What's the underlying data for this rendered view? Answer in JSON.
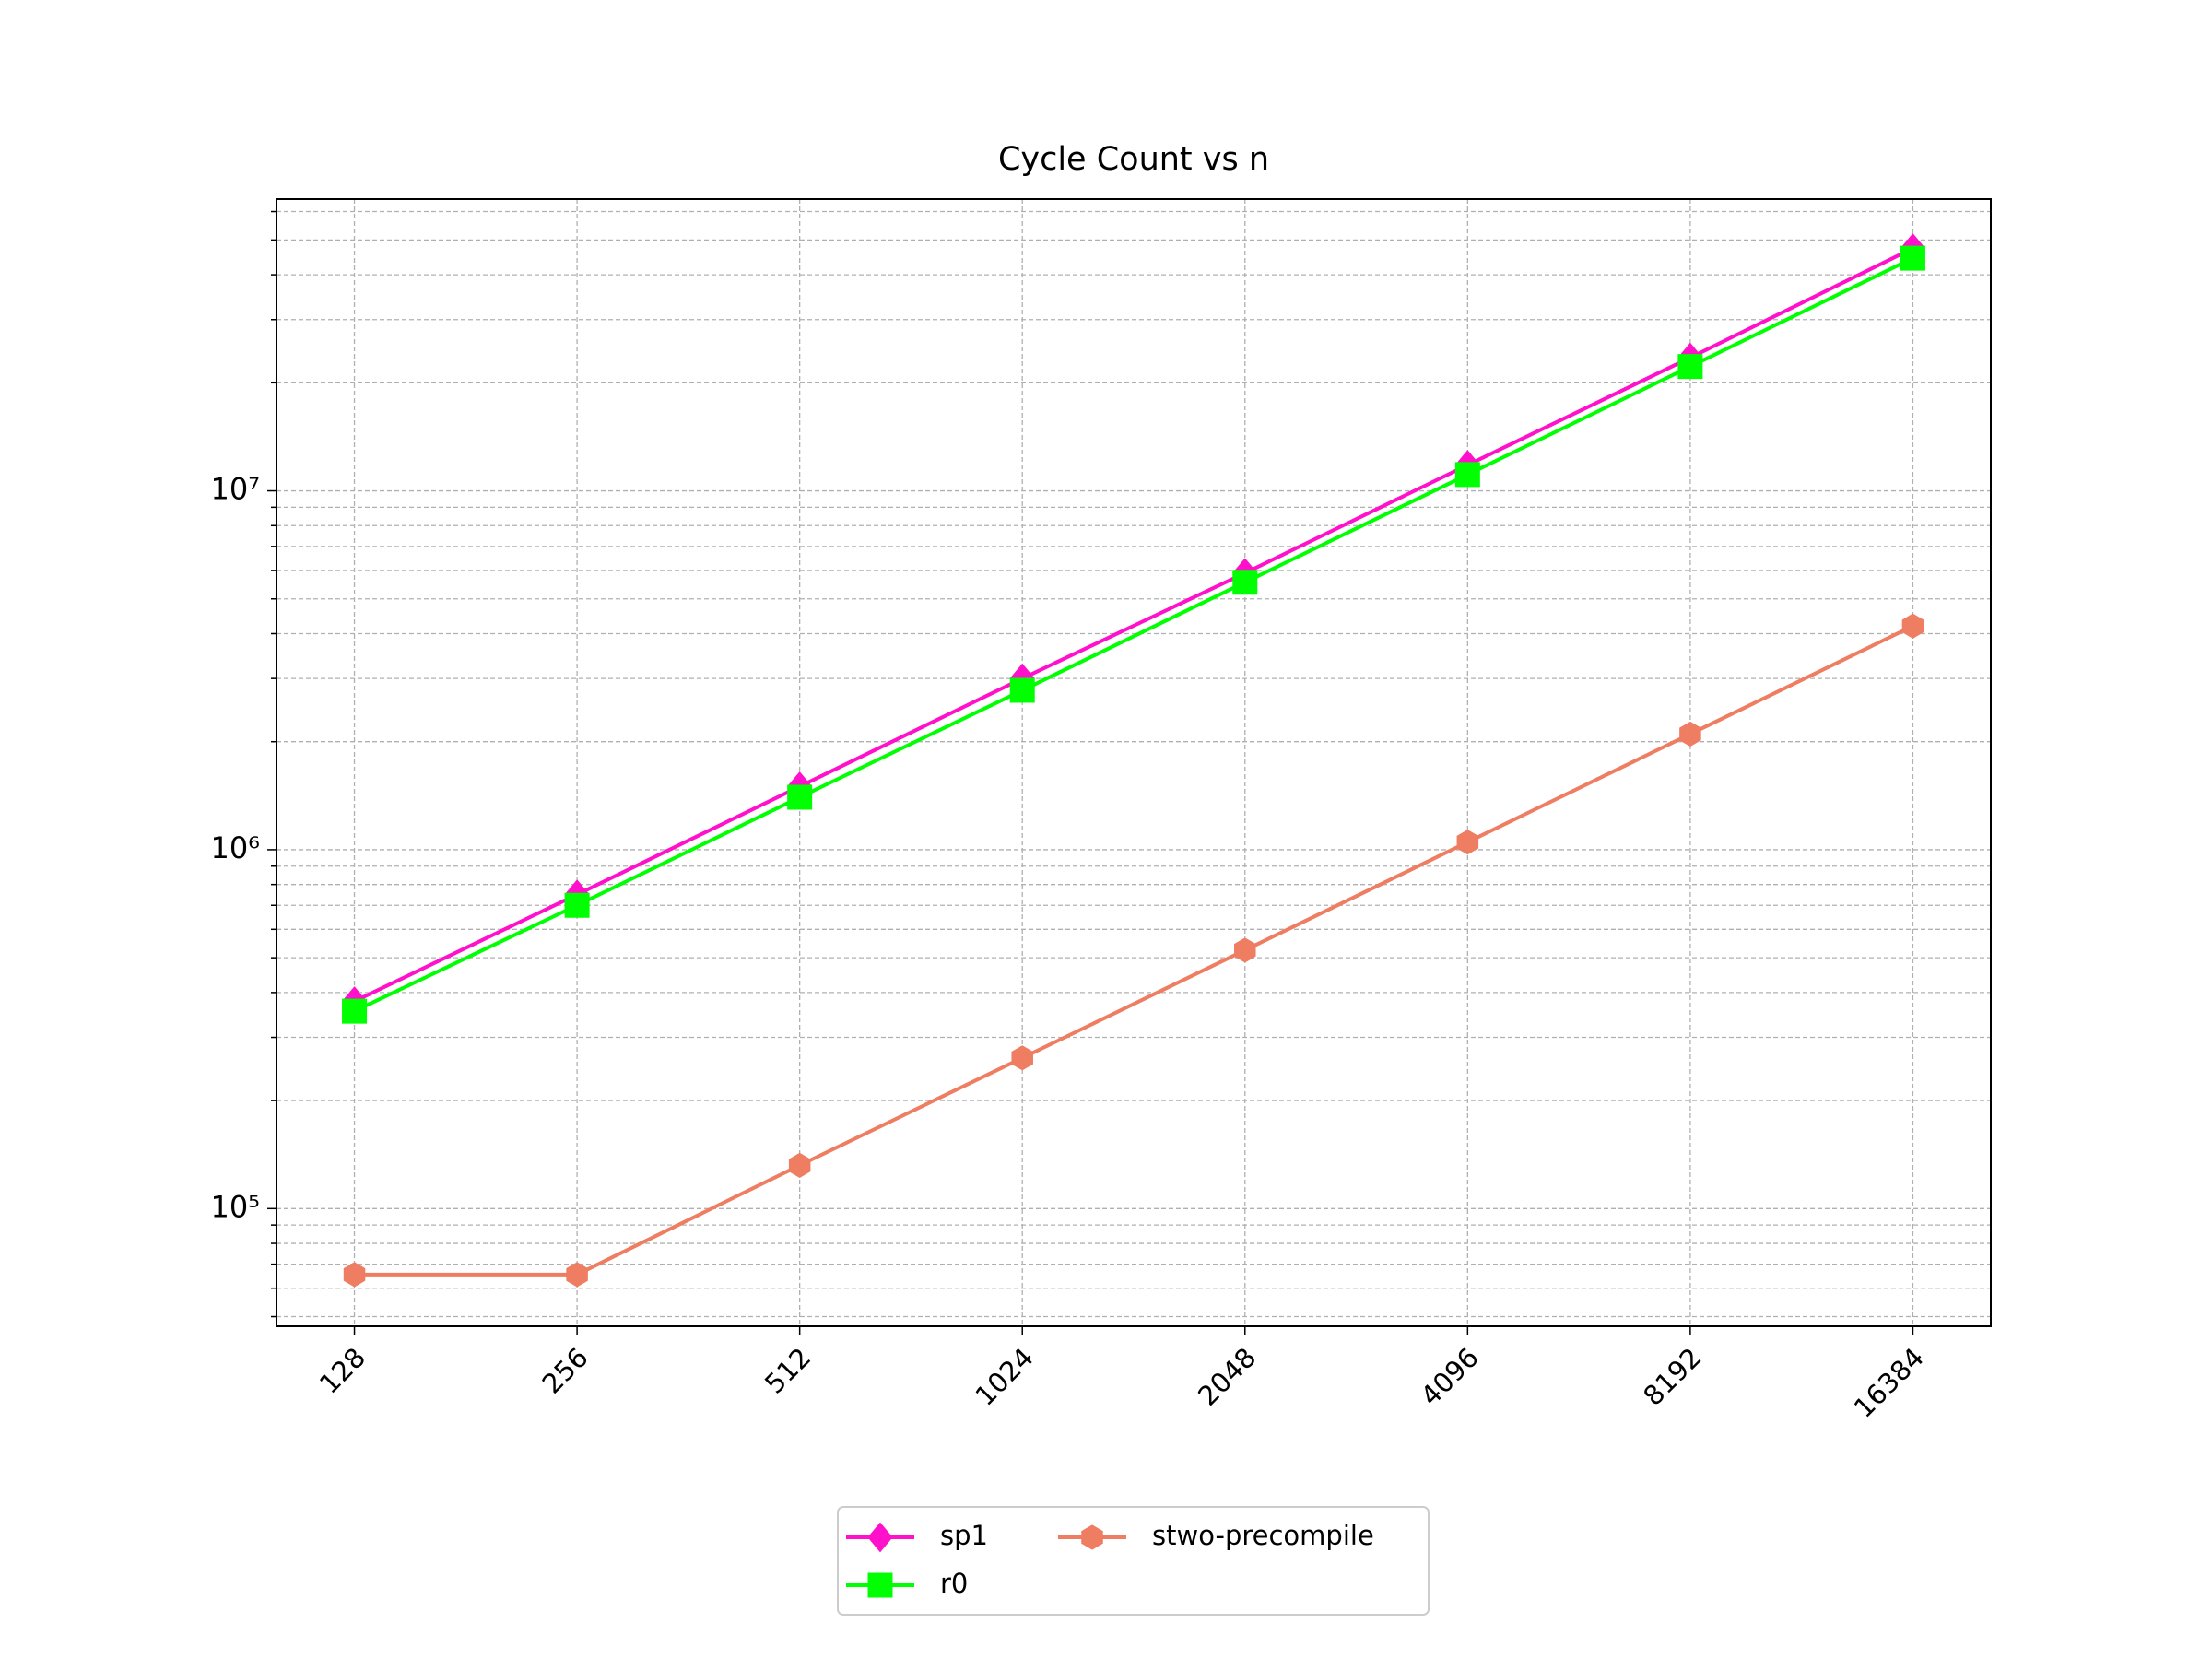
{
  "chart_data": {
    "type": "line",
    "title": "Cycle Count vs n",
    "categories": [
      "128",
      "256",
      "512",
      "1024",
      "2048",
      "4096",
      "8192",
      "16384"
    ],
    "series": [
      {
        "name": "sp1",
        "color": "#ff11cc",
        "marker": "diamond",
        "values": [
          378000,
          750000,
          1500000,
          3000000,
          5900000,
          11800000,
          23500000,
          47400000
        ]
      },
      {
        "name": "r0",
        "color": "#00ff00",
        "marker": "square",
        "values": [
          355000,
          700000,
          1400000,
          2780000,
          5560000,
          11100000,
          22200000,
          44500000
        ]
      },
      {
        "name": "stwo-precompile",
        "color": "#ee7d62",
        "marker": "hexagon",
        "values": [
          65500,
          65500,
          132000,
          263000,
          525000,
          1050000,
          2100000,
          4200000
        ]
      }
    ],
    "ylim": [
      47000,
      65000000
    ],
    "log_y": true,
    "yticks": [
      {
        "value": 100000,
        "label": "10⁵"
      },
      {
        "value": 1000000,
        "label": "10⁶"
      },
      {
        "value": 10000000,
        "label": "10⁷"
      }
    ],
    "yticks_minor": [
      50000,
      60000,
      70000,
      80000,
      90000,
      200000,
      300000,
      400000,
      500000,
      600000,
      700000,
      800000,
      900000,
      2000000,
      3000000,
      4000000,
      5000000,
      6000000,
      7000000,
      8000000,
      9000000,
      20000000,
      30000000,
      40000000,
      50000000,
      60000000
    ],
    "grid": true,
    "legend": "bottom"
  }
}
